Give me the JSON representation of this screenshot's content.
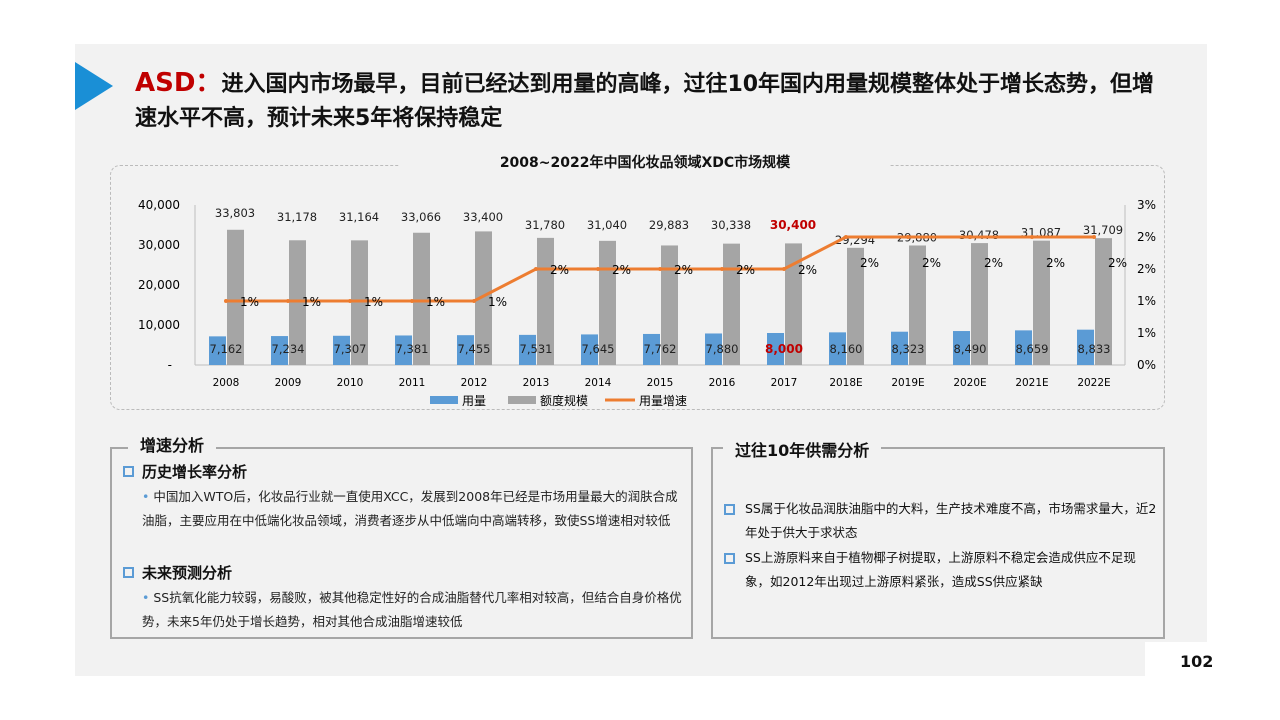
{
  "title": {
    "prefix": "ASD：",
    "text": "进入国内市场最早，目前已经达到用量的高峰，过往10年国内用量规模整体处于增长态势，但增速水平不高，预计未来5年将保持稳定"
  },
  "chart_data": {
    "type": "bar",
    "title": "2008~2022年中国化妆品领域XDC市场规模",
    "categories": [
      "2008",
      "2009",
      "2010",
      "2011",
      "2012",
      "2013",
      "2014",
      "2015",
      "2016",
      "2017",
      "2018E",
      "2019E",
      "2020E",
      "2021E",
      "2022E"
    ],
    "series": [
      {
        "name": "用量",
        "type": "bar",
        "axis": "left",
        "color": "#5b9bd5",
        "values": [
          7162,
          7234,
          7307,
          7381,
          7455,
          7531,
          7645,
          7762,
          7880,
          8000,
          8160,
          8323,
          8490,
          8659,
          8833
        ],
        "labels": [
          "7,162",
          "7,234",
          "7,307",
          "7,381",
          "7,455",
          "7,531",
          "7,645",
          "7,762",
          "7,880",
          "8,000",
          "8,160",
          "8,323",
          "8,490",
          "8,659",
          "8,833"
        ]
      },
      {
        "name": "额度规模",
        "type": "bar",
        "axis": "left",
        "color": "#a5a5a5",
        "values": [
          33803,
          31178,
          31164,
          33066,
          33400,
          31780,
          31040,
          29883,
          30338,
          30400,
          29294,
          29880,
          30478,
          31087,
          31709
        ],
        "labels": [
          "33,803",
          "31,178",
          "31,164",
          "33,066",
          "33,400",
          "31,780",
          "31,040",
          "29,883",
          "30,338",
          "30,400",
          "29,294",
          "29,880",
          "30,478",
          "31,087",
          "31,709"
        ]
      },
      {
        "name": "用量增速",
        "type": "line",
        "axis": "right",
        "color": "#ed7d31",
        "values": [
          1.2,
          1.2,
          1.2,
          1.2,
          1.2,
          1.8,
          1.8,
          1.8,
          1.8,
          1.8,
          2.4,
          2.4,
          2.4,
          2.4,
          2.4
        ],
        "labels": [
          "1%",
          "1%",
          "1%",
          "1%",
          "1%",
          "2%",
          "2%",
          "2%",
          "2%",
          "2%",
          "2%",
          "2%",
          "2%",
          "2%",
          "2%"
        ]
      }
    ],
    "highlight": {
      "category": "2017",
      "color": "#c00000"
    },
    "y_left": {
      "range": [
        0,
        40000
      ],
      "ticks": [
        "-",
        "10,000",
        "20,000",
        "30,000",
        "40,000"
      ]
    },
    "y_right": {
      "range": [
        0,
        3
      ],
      "ticks": [
        "0%",
        "1%",
        "1%",
        "2%",
        "2%",
        "3%"
      ]
    },
    "legend": "bottom",
    "grid": false
  },
  "left_panel": {
    "title": "增速分析",
    "sections": [
      {
        "heading": "历史增长率分析",
        "text": "中国加入WTO后，化妆品行业就一直使用XCC，发展到2008年已经是市场用量最大的润肤合成油脂，主要应用在中低端化妆品领域，消费者逐步从中低端向中高端转移，致使SS增速相对较低"
      },
      {
        "heading": "未来预测分析",
        "text": "SS抗氧化能力较弱，易酸败，被其他稳定性好的合成油脂替代几率相对较高，但结合自身价格优势，未来5年仍处于增长趋势，相对其他合成油脂增速较低"
      }
    ]
  },
  "right_panel": {
    "title": "过往10年供需分析",
    "bullets": [
      "SS属于化妆品润肤油脂中的大料，生产技术难度不高，市场需求量大，近2年处于供大于求状态",
      "SS上游原料来自于植物椰子树提取，上游原料不稳定会造成供应不足现象，如2012年出现过上游原料紧张，造成SS供应紧缺"
    ]
  },
  "page_number": "102"
}
